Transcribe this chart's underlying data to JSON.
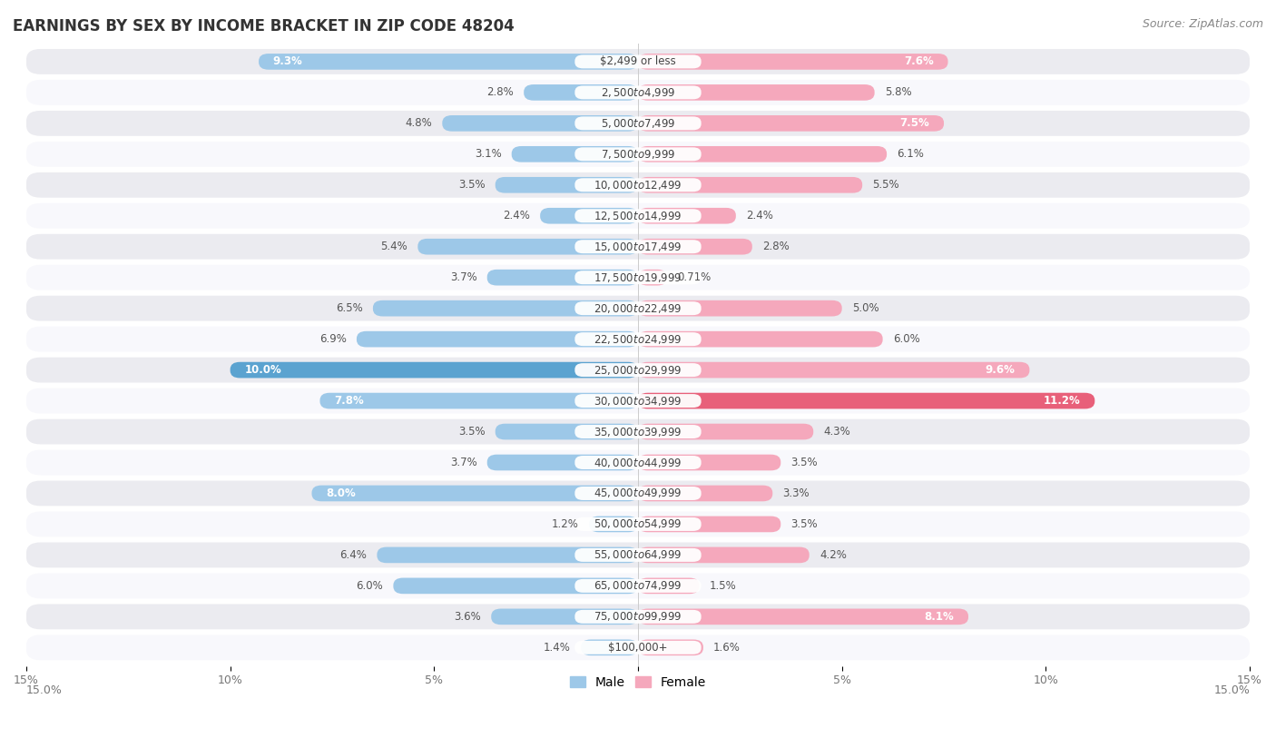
{
  "title": "EARNINGS BY SEX BY INCOME BRACKET IN ZIP CODE 48204",
  "source": "Source: ZipAtlas.com",
  "categories": [
    "$2,499 or less",
    "$2,500 to $4,999",
    "$5,000 to $7,499",
    "$7,500 to $9,999",
    "$10,000 to $12,499",
    "$12,500 to $14,999",
    "$15,000 to $17,499",
    "$17,500 to $19,999",
    "$20,000 to $22,499",
    "$22,500 to $24,999",
    "$25,000 to $29,999",
    "$30,000 to $34,999",
    "$35,000 to $39,999",
    "$40,000 to $44,999",
    "$45,000 to $49,999",
    "$50,000 to $54,999",
    "$55,000 to $64,999",
    "$65,000 to $74,999",
    "$75,000 to $99,999",
    "$100,000+"
  ],
  "male_values": [
    9.3,
    2.8,
    4.8,
    3.1,
    3.5,
    2.4,
    5.4,
    3.7,
    6.5,
    6.9,
    10.0,
    7.8,
    3.5,
    3.7,
    8.0,
    1.2,
    6.4,
    6.0,
    3.6,
    1.4
  ],
  "female_values": [
    7.6,
    5.8,
    7.5,
    6.1,
    5.5,
    2.4,
    2.8,
    0.71,
    5.0,
    6.0,
    9.6,
    11.2,
    4.3,
    3.5,
    3.3,
    3.5,
    4.2,
    1.5,
    8.1,
    1.6
  ],
  "male_color": "#9DC8E8",
  "female_color": "#F5A8BC",
  "highlight_male_color": "#5BA3D0",
  "highlight_female_color": "#E8607A",
  "bg_color": "#FFFFFF",
  "row_even_color": "#EBEBF0",
  "row_odd_color": "#F8F8FC",
  "center_box_color": "#FFFFFF",
  "xlim": 15.0,
  "title_fontsize": 12,
  "source_fontsize": 9,
  "bar_fontsize": 8.5,
  "category_fontsize": 8.5,
  "label_inside_threshold_male": 7.5,
  "label_inside_threshold_female": 7.5
}
